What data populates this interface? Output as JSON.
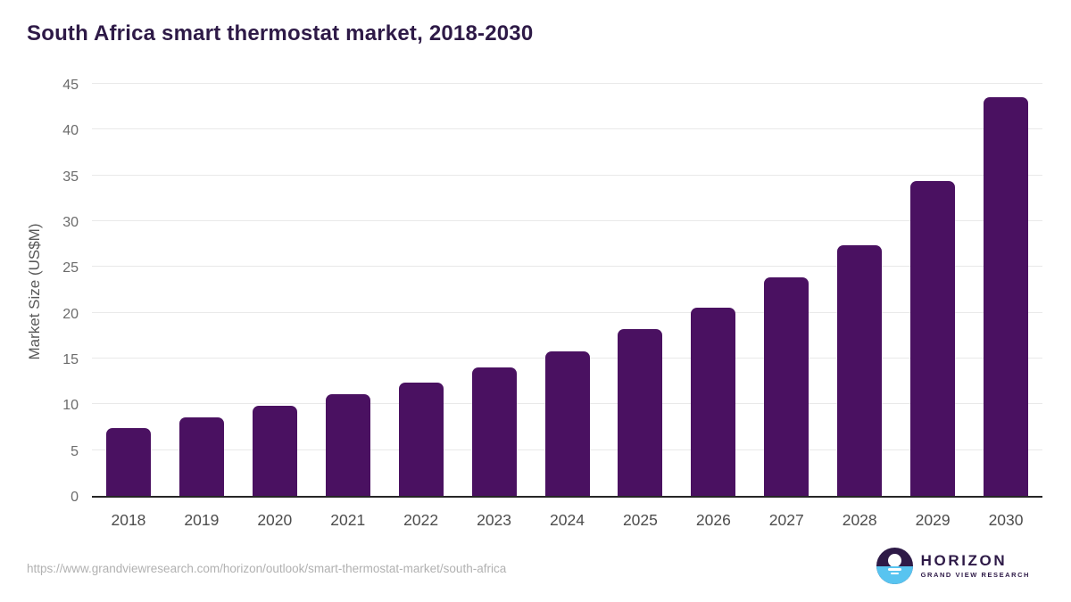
{
  "chart": {
    "title": "South Africa smart thermostat market, 2018-2030"
  },
  "chart_data": {
    "type": "bar",
    "title": "South Africa smart thermostat market, 2018-2030",
    "categories": [
      "2018",
      "2019",
      "2020",
      "2021",
      "2022",
      "2023",
      "2024",
      "2025",
      "2026",
      "2027",
      "2028",
      "2029",
      "2030"
    ],
    "values": [
      7.4,
      8.6,
      9.8,
      11.1,
      12.4,
      14.0,
      15.8,
      18.2,
      20.6,
      23.9,
      27.4,
      34.4,
      43.5
    ],
    "xlabel": "",
    "ylabel": "Market Size (US$M)",
    "ylim": [
      0,
      45
    ],
    "ytick_step": 5,
    "grid": "horizontal",
    "legend": "none",
    "bar_color": "#4a1161"
  },
  "footer": {
    "source_url": "https://www.grandviewresearch.com/horizon/outlook/smart-thermostat-market/south-africa",
    "logo": {
      "name": "HORIZON",
      "subtitle": "GRAND VIEW RESEARCH"
    }
  },
  "colors": {
    "bar": "#4a1161",
    "title_text": "#2e1a47",
    "axis_text": "#595959",
    "tick_text": "#4d4d4d",
    "gridline": "#e9e9e9",
    "axis_line": "#262626",
    "url_text": "#b1b1b1",
    "logo_purple": "#2e1a47",
    "logo_blue": "#58c4f0"
  }
}
